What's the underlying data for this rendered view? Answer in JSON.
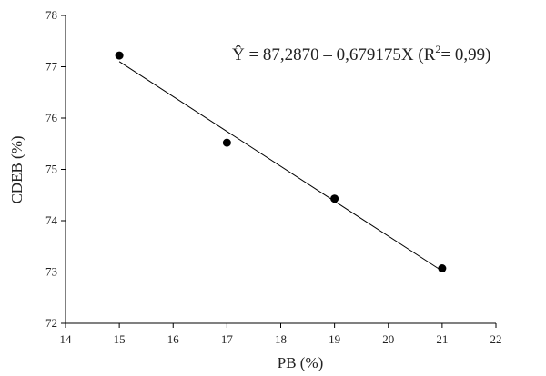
{
  "chart_data": {
    "type": "scatter",
    "x_label": "PB (%)",
    "y_label": "CDEB (%)",
    "annotation": [
      "Ŷ = 87,2870 – 0,679175X (R",
      "2",
      "= 0,99)"
    ],
    "points": {
      "x": [
        15,
        17,
        19,
        21
      ],
      "values": [
        77.22,
        75.52,
        74.43,
        73.07
      ],
      "color": "#000000"
    },
    "fit_line": {
      "x": [
        15,
        21
      ],
      "values": [
        77.1,
        73.02
      ],
      "color": "#000000"
    },
    "xlim": [
      14,
      22
    ],
    "xticks": [
      14,
      15,
      16,
      17,
      18,
      19,
      20,
      21,
      22
    ],
    "ylim": [
      72,
      78
    ],
    "yticks": [
      72,
      73,
      74,
      75,
      76,
      77,
      78
    ],
    "grid": false
  }
}
